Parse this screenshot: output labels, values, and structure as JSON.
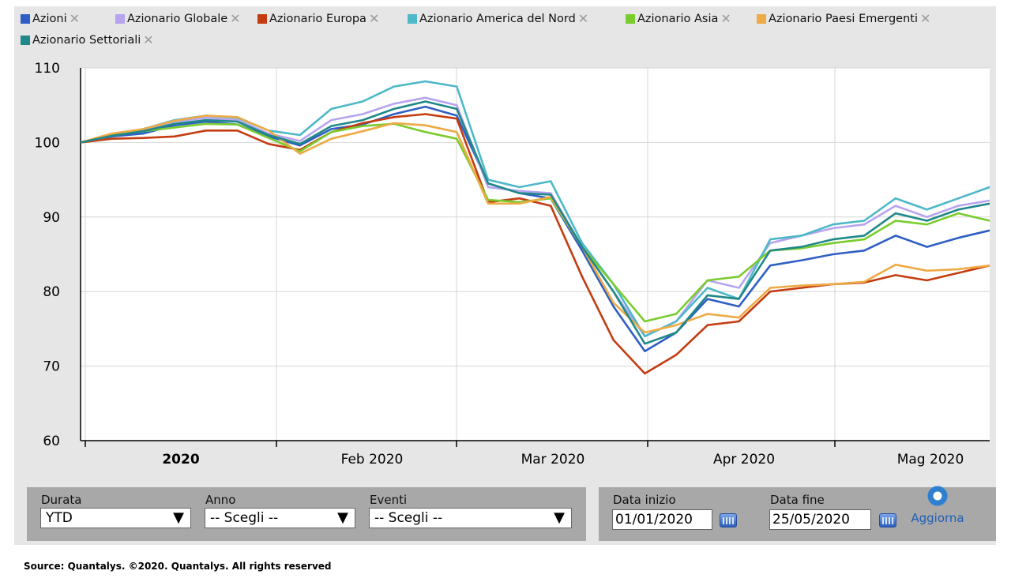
{
  "legend": [
    {
      "label": "Azioni",
      "color": "#2f5fc4"
    },
    {
      "label": "Azionario Globale",
      "color": "#b7a4ee"
    },
    {
      "label": "Azionario Europa",
      "color": "#c43c10"
    },
    {
      "label": "Azionario America del Nord",
      "color": "#4db8c8"
    },
    {
      "label": "Azionario Asia",
      "color": "#7acc2e"
    },
    {
      "label": "Azionario Paesi Emergenti",
      "color": "#eeaa44"
    },
    {
      "label": "Azionario Settoriali",
      "color": "#208888"
    }
  ],
  "chart_data": {
    "type": "line",
    "y_ticks": [
      "110",
      "100",
      "90",
      "80",
      "70",
      "60"
    ],
    "x_ticks": [
      "2020",
      "Feb 2020",
      "Mar 2020",
      "Apr 2020",
      "Mag 2020"
    ],
    "ylim": [
      60,
      110
    ],
    "grid": true,
    "x": [
      1,
      6,
      11,
      16,
      21,
      26,
      31,
      36,
      41,
      46,
      51,
      56,
      61,
      66,
      71,
      76,
      81,
      86,
      91,
      96,
      101,
      106,
      111,
      116,
      121,
      126,
      131,
      136,
      141,
      146
    ],
    "series": [
      {
        "name": "Azioni",
        "color": "#2f5fc4",
        "values": [
          100,
          100.8,
          101.2,
          102.3,
          102.8,
          102.4,
          100.8,
          99.6,
          101.8,
          102.4,
          103.8,
          104.8,
          103.6,
          94.5,
          93.2,
          92.5,
          85.5,
          78,
          72,
          74.5,
          79,
          78,
          83.5,
          84.2,
          85,
          85.5,
          87.5,
          86,
          87.2,
          88.2
        ]
      },
      {
        "name": "Azionario Globale",
        "color": "#b7a4ee",
        "values": [
          100,
          100.9,
          101.6,
          102.8,
          103.3,
          103,
          101.2,
          100.2,
          103,
          103.8,
          105.2,
          106,
          105,
          94,
          93.5,
          93.2,
          86,
          80,
          74,
          76,
          81.5,
          80.5,
          86.5,
          87.5,
          88.5,
          89,
          91.5,
          90,
          91.5,
          92.2
        ]
      },
      {
        "name": "Azionario Europa",
        "color": "#c43c10",
        "values": [
          100,
          100.5,
          100.6,
          100.8,
          101.6,
          101.6,
          99.8,
          99,
          101.4,
          102.6,
          103.4,
          103.8,
          103.2,
          92,
          92.5,
          91.5,
          82,
          73.5,
          69,
          71.5,
          75.5,
          76,
          80,
          80.5,
          81,
          81.2,
          82.2,
          81.5,
          82.5,
          83.5
        ]
      },
      {
        "name": "Azionario America del Nord",
        "color": "#4db8c8",
        "values": [
          100,
          100.9,
          101.8,
          103,
          103.6,
          103.3,
          101.6,
          101,
          104.5,
          105.5,
          107.5,
          108.2,
          107.5,
          95,
          94,
          94.8,
          86.5,
          81,
          74,
          76,
          80.5,
          79,
          87,
          87.5,
          89,
          89.5,
          92.5,
          91,
          92.5,
          94
        ]
      },
      {
        "name": "Azionario Asia",
        "color": "#7acc2e",
        "values": [
          100,
          101,
          101.5,
          102,
          102.5,
          102.4,
          100.6,
          98.8,
          101.4,
          102.2,
          102.5,
          101.4,
          100.5,
          92.3,
          92,
          92.5,
          86,
          81,
          76,
          77,
          81.5,
          82,
          85.5,
          85.8,
          86.5,
          87,
          89.5,
          89,
          90.5,
          89.5
        ]
      },
      {
        "name": "Azionario Paesi Emergenti",
        "color": "#eeaa44",
        "values": [
          100,
          101.2,
          101.8,
          102.9,
          103.6,
          103.4,
          101.6,
          98.5,
          100.5,
          101.5,
          102.6,
          102.3,
          101.4,
          91.8,
          91.8,
          92.7,
          86,
          78.5,
          74.5,
          75.5,
          77,
          76.5,
          80.5,
          80.8,
          81,
          81.3,
          83.6,
          82.8,
          83,
          83.5
        ]
      },
      {
        "name": "Azionario Settoriali",
        "color": "#208888",
        "values": [
          100,
          100.9,
          101.5,
          102.5,
          103,
          102.8,
          101,
          99.8,
          102.2,
          103,
          104.5,
          105.5,
          104.5,
          94.5,
          93.2,
          93,
          86,
          80,
          73,
          74.5,
          79.5,
          79,
          85.5,
          86,
          87,
          87.5,
          90.5,
          89.5,
          91,
          91.8
        ]
      }
    ]
  },
  "controls": {
    "durata": {
      "label": "Durata",
      "value": "YTD"
    },
    "anno": {
      "label": "Anno",
      "value": "-- Scegli --"
    },
    "eventi": {
      "label": "Eventi",
      "value": "-- Scegli --"
    },
    "data_inizio": {
      "label": "Data inizio",
      "value": "01/01/2020"
    },
    "data_fine": {
      "label": "Data fine",
      "value": "25/05/2020"
    },
    "refresh_label": "Aggiorna"
  },
  "source": "Source: Quantalys. ©2020. Quantalys. All rights reserved"
}
